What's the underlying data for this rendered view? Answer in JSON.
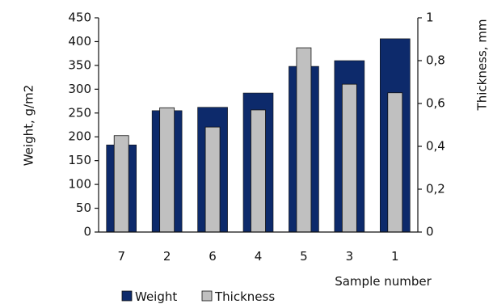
{
  "chart_data": {
    "type": "bar",
    "categories": [
      "7",
      "2",
      "6",
      "4",
      "5",
      "3",
      "1"
    ],
    "xlabel": "Sample number",
    "series": [
      {
        "name": "Weight",
        "axis": "left",
        "values": [
          183,
          255,
          262,
          292,
          348,
          360,
          406
        ],
        "color": "#0d2a6b"
      },
      {
        "name": "Thickness",
        "axis": "right",
        "values": [
          0.45,
          0.58,
          0.49,
          0.57,
          0.86,
          0.69,
          0.65
        ],
        "color": "#c0c0c0"
      }
    ],
    "y_left": {
      "label": "Weight, g/m2",
      "lim": [
        0,
        450
      ],
      "ticks": [
        0,
        50,
        100,
        150,
        200,
        250,
        300,
        350,
        400,
        450
      ],
      "tick_labels": [
        "0",
        "50",
        "100",
        "150",
        "200",
        "250",
        "300",
        "350",
        "400",
        "450"
      ]
    },
    "y_right": {
      "label": "Thickness, mm",
      "lim": [
        0,
        1
      ],
      "ticks": [
        0,
        0.2,
        0.4,
        0.6,
        0.8,
        1
      ],
      "tick_labels": [
        "0",
        "0,2",
        "0,4",
        "0,6",
        "0,8",
        "1"
      ]
    },
    "grid": false,
    "legend_position": "bottom-left"
  }
}
